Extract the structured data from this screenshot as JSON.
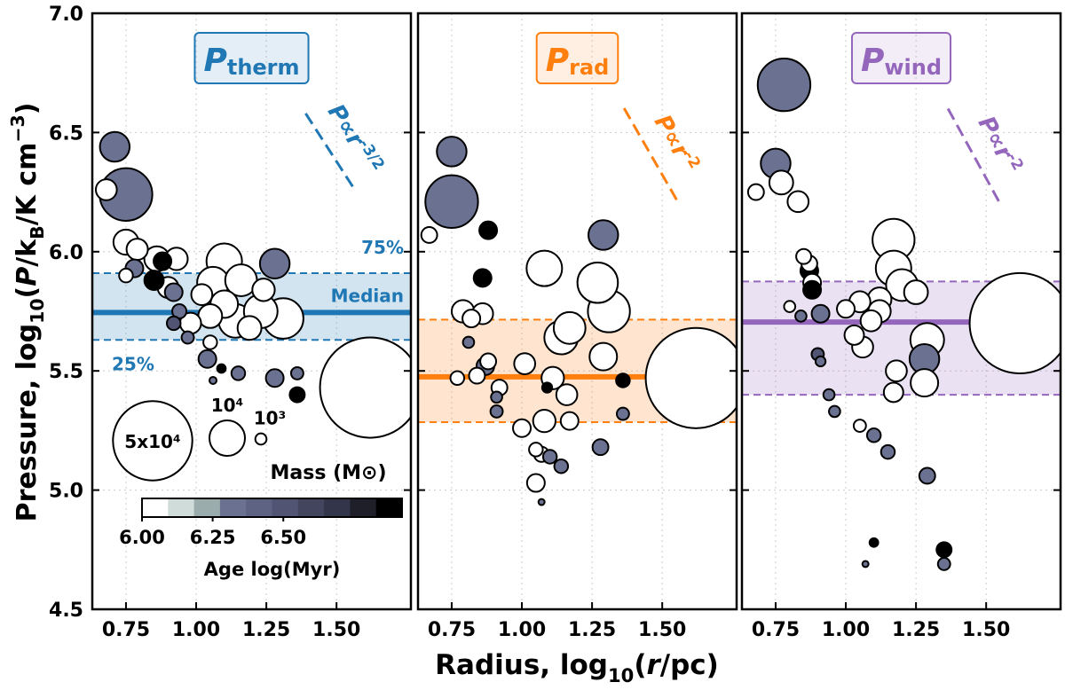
{
  "chart_data": [
    {
      "type": "scatter",
      "title": "P",
      "title_subscript": "therm",
      "color": "#1f77b4",
      "xlabel": [
        "Radius, log",
        "10",
        "(",
        "r",
        "/pc)"
      ],
      "ylabel": [
        "Pressure, log",
        "10",
        "(",
        "P",
        "/k",
        "B",
        "/K cm",
        "−3",
        ")"
      ],
      "xlim": [
        0.63,
        1.765
      ],
      "ylim": [
        4.5,
        7.0
      ],
      "xticks": [
        {
          "value": 0.75,
          "label": "0.75"
        },
        {
          "value": 1,
          "label": "1.00"
        },
        {
          "value": 1.25,
          "label": "1.25"
        },
        {
          "value": 1.5,
          "label": "1.50"
        }
      ],
      "yticks": [
        4.5,
        {
          "value": 5,
          "label": "5.0"
        },
        5.5,
        {
          "value": 6,
          "label": "6.0"
        },
        6.5,
        {
          "value": 7,
          "label": "7.0"
        }
      ],
      "grid": true,
      "x": [
        0.71,
        0.75,
        0.68,
        0.75,
        0.79,
        0.78,
        0.75,
        0.86,
        0.93,
        0.85,
        0.88,
        0.9,
        0.92,
        0.94,
        0.98,
        0.92,
        0.97,
        1.02,
        1.1,
        1.06,
        1.16,
        1.05,
        1.05,
        1.1,
        1.14,
        1.19,
        1.28,
        1.23,
        1.31,
        1.24,
        1.04,
        1.09,
        1.06,
        1.15,
        1.28,
        1.36,
        1.36,
        1.62
      ],
      "y": [
        6.44,
        6.24,
        6.26,
        6.04,
        6.01,
        5.93,
        5.9,
        5.97,
        5.97,
        5.88,
        5.96,
        5.85,
        5.83,
        5.75,
        5.7,
        5.7,
        5.64,
        5.82,
        5.96,
        5.87,
        5.88,
        5.73,
        5.62,
        5.78,
        5.71,
        5.68,
        5.95,
        5.75,
        5.72,
        5.84,
        5.55,
        5.51,
        5.46,
        5.49,
        5.47,
        5.49,
        5.4,
        5.43
      ],
      "mass": [
        7000,
        22000,
        3500,
        5000,
        3600,
        2500,
        1500,
        5000,
        4000,
        3000,
        2500,
        3500,
        2500,
        1600,
        3500,
        1500,
        1200,
        3500,
        10000,
        8000,
        8000,
        4500,
        1500,
        6000,
        9000,
        4500,
        7000,
        9000,
        13000,
        4000,
        2500,
        600,
        400,
        1500,
        2500,
        1200,
        1800,
        80000
      ],
      "age": [
        6.35,
        6.35,
        6.0,
        6.0,
        6.0,
        6.35,
        6.0,
        6.0,
        6.0,
        6.85,
        6.85,
        6.0,
        6.35,
        6.35,
        6.0,
        6.5,
        6.35,
        6.0,
        6.0,
        6.0,
        6.0,
        6.0,
        6.0,
        6.0,
        6.0,
        6.0,
        6.35,
        6.0,
        6.0,
        6.0,
        6.35,
        6.85,
        6.35,
        6.35,
        6.35,
        6.35,
        6.85,
        6.0
      ],
      "median": 5.745,
      "quartiles": [
        5.63,
        5.91
      ],
      "quartile_labels": {
        "upper": "75%",
        "median": "Median",
        "lower": "25%"
      },
      "trend": {
        "x": [
          1.39,
          1.567
        ],
        "y": [
          6.58,
          6.256
        ],
        "text": "P∝r",
        "exponent": "-3/2"
      },
      "mass_legend": {
        "title": "Mass (M⊙)",
        "sizes": [
          {
            "value": 50000,
            "label": "5x10⁴"
          },
          {
            "value": 10000,
            "label": "10⁴"
          },
          {
            "value": 1000,
            "label": "10³"
          }
        ]
      },
      "colorbar": {
        "label": "Age log(Myr)",
        "lim": [
          6.0,
          6.92
        ],
        "ticks": [
          {
            "value": 6,
            "label": "6.00"
          },
          {
            "value": 6.25,
            "label": "6.25"
          },
          {
            "value": 6.5,
            "label": "6.50"
          }
        ],
        "colors": [
          "#ffffff",
          "#d0dcd9",
          "#9aacac",
          "#6b7190",
          "#5e6283",
          "#515473",
          "#43455f",
          "#33354a",
          "#1e1f28",
          "#000000"
        ]
      }
    },
    {
      "type": "scatter",
      "title": "P",
      "title_subscript": "rad",
      "color": "#ff7f0e",
      "xlim": [
        0.63,
        1.765
      ],
      "ylim": [
        4.5,
        7.0
      ],
      "xticks": [
        {
          "value": 0.75,
          "label": "0.75"
        },
        {
          "value": 1,
          "label": "1.00"
        },
        {
          "value": 1.25,
          "label": "1.25"
        },
        {
          "value": 1.5,
          "label": "1.50"
        }
      ],
      "grid": true,
      "x": [
        0.75,
        0.75,
        0.67,
        0.88,
        0.86,
        0.79,
        0.82,
        0.86,
        0.81,
        0.77,
        0.84,
        0.87,
        0.88,
        0.92,
        0.91,
        0.91,
        1.01,
        1.08,
        1.14,
        1.17,
        1.11,
        1.09,
        1.16,
        1.29,
        1.27,
        1.29,
        1.31,
        1.36,
        1.36,
        1.0,
        1.08,
        1.05,
        1.07,
        1.1,
        1.14,
        1.17,
        1.28,
        1.05,
        1.07,
        1.62
      ],
      "y": [
        6.42,
        6.21,
        6.07,
        6.09,
        5.89,
        5.75,
        5.72,
        5.74,
        5.62,
        5.47,
        5.48,
        5.52,
        5.54,
        5.43,
        5.39,
        5.33,
        5.53,
        5.93,
        5.64,
        5.68,
        5.47,
        5.43,
        5.4,
        6.07,
        5.87,
        5.56,
        5.75,
        5.46,
        5.32,
        5.26,
        5.29,
        5.17,
        5.15,
        5.14,
        5.1,
        5.29,
        5.18,
        5.03,
        4.95,
        5.47
      ],
      "mass": [
        7000,
        22000,
        2000,
        2500,
        2500,
        4000,
        2500,
        3500,
        1000,
        1500,
        2000,
        2500,
        2000,
        2000,
        1000,
        1200,
        3500,
        10000,
        9000,
        8000,
        4000,
        800,
        3500,
        7000,
        13000,
        6000,
        14000,
        1500,
        1200,
        2500,
        4000,
        1500,
        1800,
        1500,
        1500,
        2500,
        2000,
        2500,
        300,
        80000
      ],
      "age": [
        6.35,
        6.35,
        6.0,
        6.85,
        6.85,
        6.0,
        6.0,
        6.0,
        6.35,
        6.0,
        6.0,
        6.35,
        6.0,
        6.0,
        6.35,
        6.35,
        6.0,
        6.0,
        6.0,
        6.0,
        6.0,
        6.85,
        6.0,
        6.35,
        6.0,
        6.0,
        6.0,
        6.85,
        6.35,
        6.0,
        6.0,
        6.0,
        6.0,
        6.35,
        6.35,
        6.0,
        6.35,
        6.0,
        6.35,
        6.0
      ],
      "median": 5.475,
      "quartiles": [
        5.285,
        5.715
      ],
      "trend": {
        "x": [
          1.364,
          1.56
        ],
        "y": [
          6.602,
          6.2
        ],
        "text": "P∝r",
        "exponent": "-2"
      }
    },
    {
      "type": "scatter",
      "title": "P",
      "title_subscript": "wind",
      "color": "#9467bd",
      "xlim": [
        0.63,
        1.765
      ],
      "ylim": [
        4.5,
        7.0
      ],
      "xticks": [
        {
          "value": 0.75,
          "label": "0.75"
        },
        {
          "value": 1,
          "label": "1.00"
        },
        {
          "value": 1.25,
          "label": "1.25"
        },
        {
          "value": 1.5,
          "label": "1.50"
        }
      ],
      "grid": true,
      "x": [
        0.78,
        0.75,
        0.68,
        0.77,
        0.83,
        0.85,
        0.87,
        0.87,
        0.88,
        0.88,
        0.8,
        0.84,
        0.91,
        0.9,
        0.91,
        0.94,
        0.96,
        1.0,
        1.03,
        1.06,
        1.05,
        1.09,
        1.12,
        1.17,
        1.17,
        1.12,
        1.2,
        1.25,
        1.18,
        1.17,
        1.28,
        1.29,
        1.28,
        1.05,
        1.1,
        1.15,
        1.29,
        1.1,
        1.07,
        1.35,
        1.35,
        1.62
      ],
      "y": [
        6.7,
        6.37,
        6.25,
        6.29,
        6.21,
        5.98,
        5.95,
        5.92,
        5.87,
        5.84,
        5.77,
        5.73,
        5.74,
        5.57,
        5.54,
        5.4,
        5.33,
        5.76,
        5.65,
        5.6,
        5.79,
        5.71,
        5.75,
        5.93,
        6.05,
        5.8,
        5.86,
        5.83,
        5.5,
        5.41,
        5.55,
        5.63,
        5.45,
        5.27,
        5.23,
        5.16,
        5.06,
        4.78,
        4.69,
        4.75,
        4.69,
        5.7
      ],
      "mass": [
        22000,
        7000,
        2000,
        4500,
        3500,
        1800,
        2000,
        2500,
        2500,
        2500,
        1000,
        1000,
        2500,
        1200,
        800,
        1000,
        1000,
        2500,
        3000,
        3500,
        3500,
        3500,
        4000,
        10000,
        14000,
        4500,
        8000,
        4500,
        3500,
        3000,
        7000,
        9000,
        6000,
        1200,
        1500,
        1500,
        2000,
        600,
        300,
        1800,
        1200,
        80000
      ],
      "age": [
        6.35,
        6.35,
        6.0,
        6.0,
        6.0,
        6.0,
        6.0,
        6.85,
        6.0,
        6.85,
        6.0,
        6.35,
        6.35,
        6.5,
        6.35,
        6.35,
        6.35,
        6.0,
        6.0,
        6.0,
        6.0,
        6.0,
        6.0,
        6.0,
        6.0,
        6.0,
        6.0,
        6.0,
        6.0,
        6.0,
        6.35,
        6.0,
        6.0,
        6.0,
        6.35,
        6.35,
        6.35,
        6.85,
        6.35,
        6.85,
        6.35,
        6.0
      ],
      "median": 5.705,
      "quartiles": [
        5.4,
        5.875
      ],
      "trend": {
        "x": [
          1.364,
          1.555
        ],
        "y": [
          6.6,
          6.19
        ],
        "text": "P∝r",
        "exponent": "-2"
      }
    }
  ]
}
